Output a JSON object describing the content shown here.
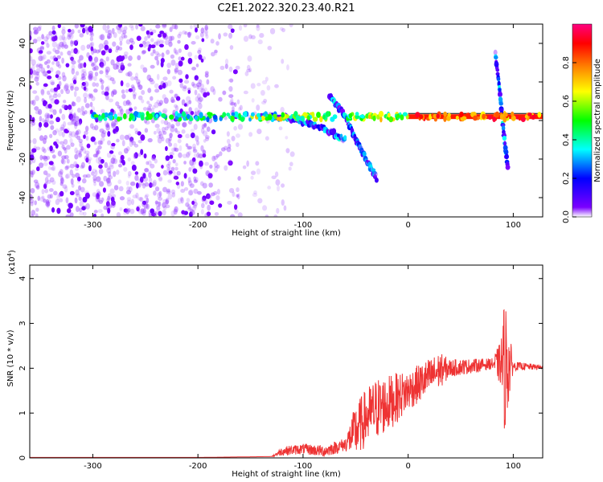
{
  "title": "C2E1.2022.320.23.40.R21",
  "chart_data": [
    {
      "type": "heatmap",
      "xlabel": "Height of straight line (km)",
      "ylabel": "Frequency (Hz)",
      "xlim": [
        -360,
        128
      ],
      "ylim": [
        -50,
        50
      ],
      "x_ticks": [
        -300,
        -200,
        -100,
        0,
        100
      ],
      "x_tick_labels": [
        "-300",
        "-200",
        "-100",
        "0",
        "100"
      ],
      "y_ticks": [
        -40,
        -20,
        0,
        20,
        40
      ],
      "y_tick_labels": [
        "-40",
        "-20",
        "0",
        "20",
        "40"
      ],
      "colorbar": {
        "label": "Normalized spectral amplitude",
        "range": [
          0,
          1
        ],
        "ticks": [
          0,
          0.2,
          0.4,
          0.6,
          0.8
        ],
        "tick_labels": [
          "0.0",
          "0.2",
          "0.4",
          "0.6",
          "0.8"
        ],
        "colormap": [
          "#ffffff",
          "#7b00ff",
          "#0000ff",
          "#00ffff",
          "#00ff00",
          "#ffff00",
          "#ff8000",
          "#ff0000",
          "#ff0080"
        ]
      },
      "features": [
        {
          "kind": "carrier-line",
          "x_range": [
            -300,
            128
          ],
          "frequency_hz": 2
        },
        {
          "kind": "noise-scatter",
          "x_range": [
            -360,
            -160
          ],
          "frequency_range": [
            -50,
            50
          ]
        },
        {
          "kind": "drift",
          "points": [
            [
              -140,
              3
            ],
            [
              -110,
              1
            ],
            [
              -80,
              -4
            ],
            [
              -60,
              -10
            ]
          ]
        },
        {
          "kind": "drift",
          "points": [
            [
              -75,
              13
            ],
            [
              -60,
              2
            ],
            [
              -45,
              -15
            ],
            [
              -30,
              -30
            ]
          ]
        },
        {
          "kind": "spike",
          "points": [
            [
              83,
              35
            ],
            [
              88,
              10
            ],
            [
              92,
              -12
            ],
            [
              95,
              -25
            ]
          ]
        }
      ],
      "grid": false
    },
    {
      "type": "line",
      "xlabel": "Height of straight line (km)",
      "ylabel": "SNR (10 * v/v)",
      "scale_label": "(x10",
      "scale_exp": "4",
      "scale_close": ")",
      "xlim": [
        -360,
        128
      ],
      "ylim": [
        0,
        4.3
      ],
      "x_ticks": [
        -300,
        -200,
        -100,
        0,
        100
      ],
      "x_tick_labels": [
        "-300",
        "-200",
        "-100",
        "0",
        "100"
      ],
      "y_ticks": [
        0,
        1,
        2,
        3,
        4
      ],
      "y_tick_labels": [
        "0",
        "1",
        "2",
        "3",
        "4"
      ],
      "series": [
        {
          "color": "#ee3333",
          "envelope": [
            [
              -360,
              0.01
            ],
            [
              -200,
              0.01
            ],
            [
              -130,
              0.03
            ],
            [
              -120,
              0.15
            ],
            [
              -100,
              0.2
            ],
            [
              -80,
              0.15
            ],
            [
              -60,
              0.3
            ],
            [
              -50,
              0.6
            ],
            [
              -40,
              0.9
            ],
            [
              -30,
              1.1
            ],
            [
              -20,
              1.2
            ],
            [
              -10,
              1.35
            ],
            [
              0,
              1.5
            ],
            [
              10,
              1.65
            ],
            [
              20,
              1.8
            ],
            [
              30,
              1.95
            ],
            [
              40,
              2.0
            ],
            [
              60,
              2.05
            ],
            [
              80,
              2.1
            ],
            [
              88,
              2.1
            ],
            [
              100,
              2.05
            ],
            [
              128,
              2.02
            ]
          ],
          "amplitude": [
            [
              -360,
              0.0
            ],
            [
              -130,
              0.0
            ],
            [
              -120,
              0.1
            ],
            [
              -60,
              0.15
            ],
            [
              -50,
              0.6
            ],
            [
              -30,
              0.7
            ],
            [
              -15,
              0.6
            ],
            [
              0,
              0.45
            ],
            [
              30,
              0.4
            ],
            [
              40,
              0.2
            ],
            [
              80,
              0.12
            ],
            [
              88,
              0.5
            ],
            [
              92,
              1.6
            ],
            [
              95,
              1.0
            ],
            [
              100,
              0.1
            ],
            [
              128,
              0.05
            ]
          ]
        }
      ],
      "grid": false
    }
  ]
}
